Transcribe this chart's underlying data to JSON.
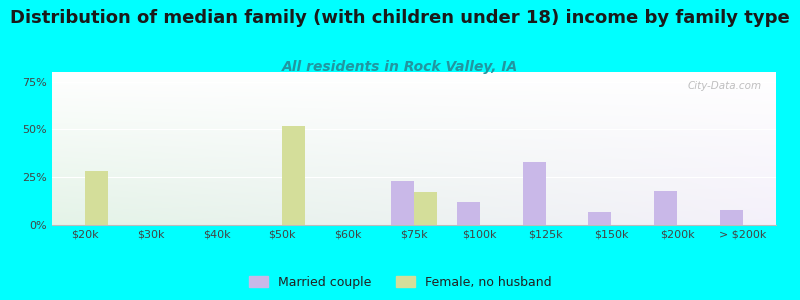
{
  "title": "Distribution of median family (with children under 18) income by family type",
  "subtitle": "All residents in Rock Valley, IA",
  "categories": [
    "$20k",
    "$30k",
    "$40k",
    "$50k",
    "$60k",
    "$75k",
    "$100k",
    "$125k",
    "$150k",
    "$200k",
    "> $200k"
  ],
  "married_couple": [
    0,
    0,
    0,
    0,
    0,
    23,
    12,
    33,
    7,
    18,
    8
  ],
  "female_no_husband": [
    28,
    0,
    0,
    52,
    0,
    17,
    0,
    0,
    0,
    0,
    0
  ],
  "married_color": "#c9b8e8",
  "female_color": "#d4de9a",
  "ylabel_ticks": [
    0,
    25,
    50,
    75
  ],
  "ylim": [
    0,
    80
  ],
  "background_color": "#00ffff",
  "title_fontsize": 13,
  "subtitle_fontsize": 10,
  "subtitle_color": "#2196a0",
  "watermark": "City-Data.com"
}
